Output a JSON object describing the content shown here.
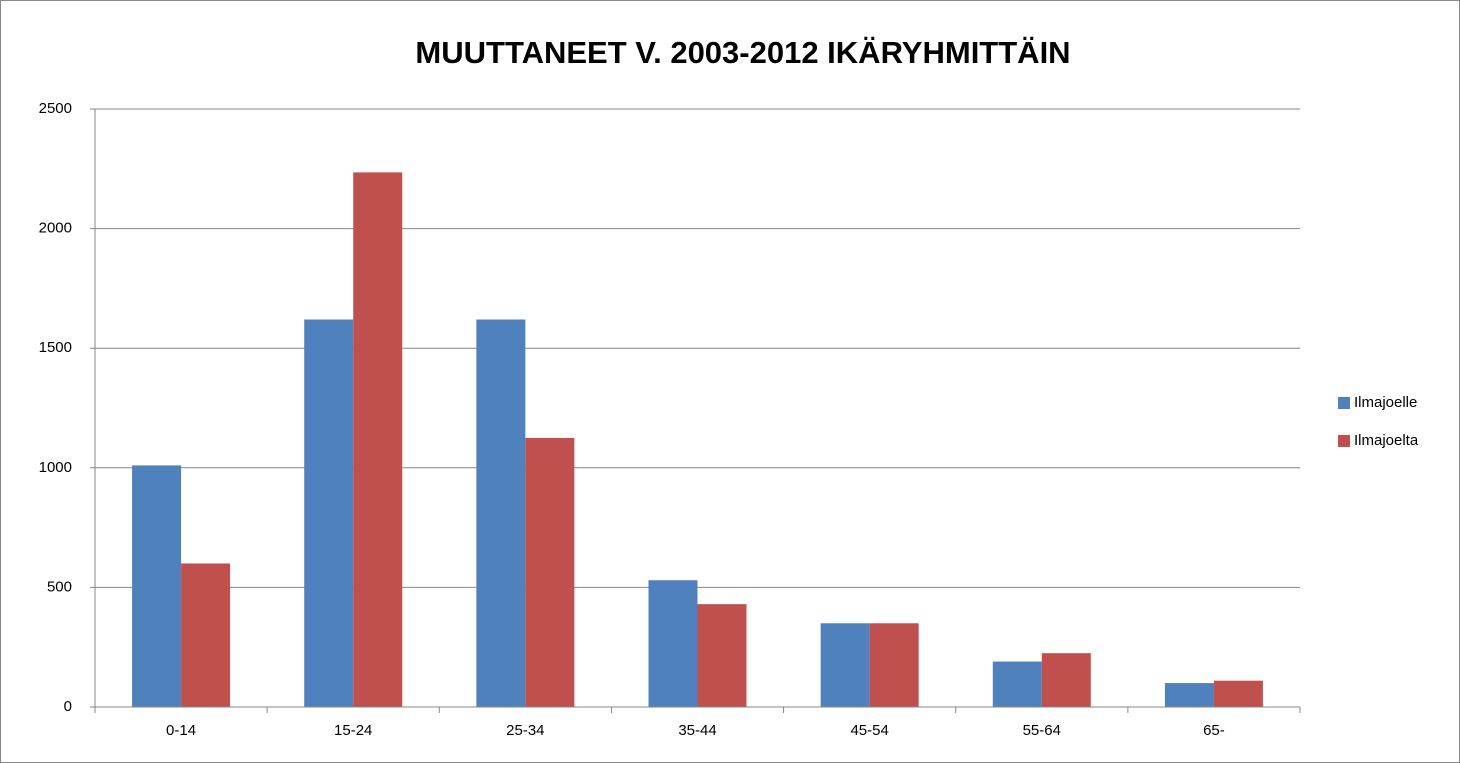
{
  "chart_data": {
    "type": "bar",
    "title": "MUUTTANEET V. 2003-2012 IKÄRYHMITTÄIN",
    "categories": [
      "0-14",
      "15-24",
      "25-34",
      "35-44",
      "45-54",
      "55-64",
      "65-"
    ],
    "series": [
      {
        "name": "Ilmajoelle",
        "color": "#4f81bd",
        "values": [
          1010,
          1620,
          1620,
          530,
          350,
          190,
          100
        ]
      },
      {
        "name": "Ilmajoelta",
        "color": "#c0504d",
        "values": [
          600,
          2235,
          1125,
          430,
          350,
          225,
          110
        ]
      }
    ],
    "ylim": [
      0,
      2500
    ],
    "yticks": [
      0,
      500,
      1000,
      1500,
      2000,
      2500
    ],
    "grid": true,
    "legend": "right"
  }
}
